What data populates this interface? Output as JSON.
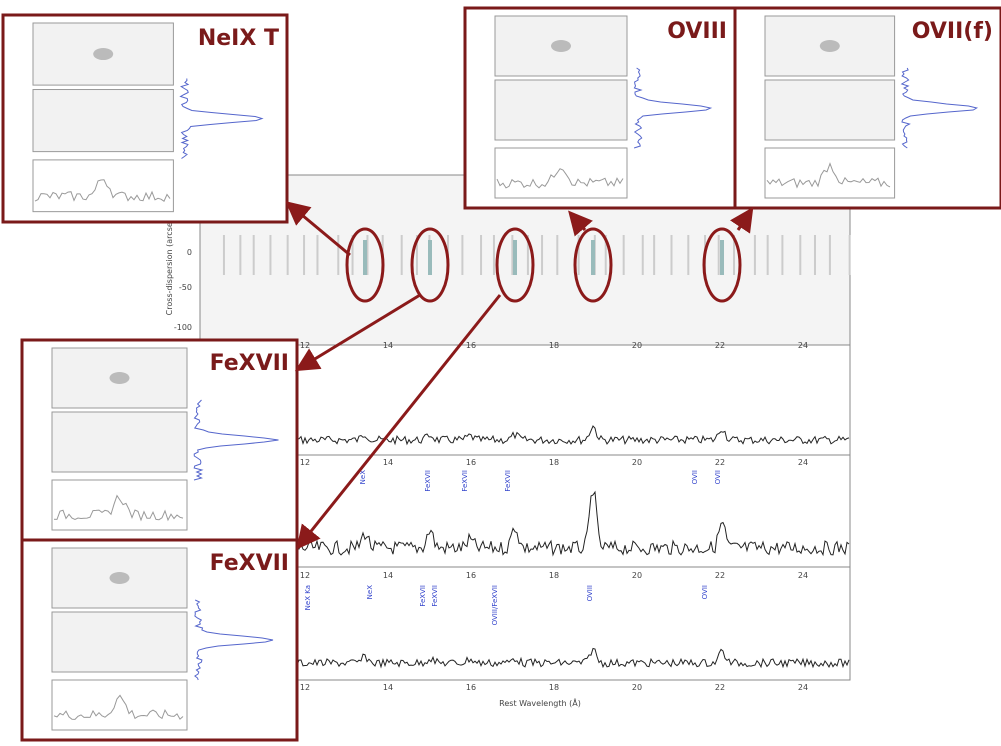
{
  "main": {
    "y_axis_label": "Cross-dispersion (arcsec)",
    "y_ticks": [
      "0",
      "-50",
      "-100"
    ],
    "x_ticks": [
      "12",
      "14",
      "16",
      "18",
      "20",
      "22",
      "24"
    ],
    "x_axis_label": "Rest Wavelength (Å)",
    "line_ids": [
      [
        "NeX",
        "FeXVII",
        "FeXVII",
        "FeXVII",
        "OVII",
        "OVII"
      ],
      [
        "NeX Ka",
        "NeX",
        "FeXVII",
        "FeXVII",
        "OVIII/FeXVII",
        "OVIII",
        "OVII"
      ]
    ]
  },
  "insets": [
    {
      "title": "NeIX T"
    },
    {
      "title": "OVIII"
    },
    {
      "title": "OVII(f)"
    },
    {
      "title": "FeXVII"
    },
    {
      "title": "FeXVII"
    }
  ]
}
